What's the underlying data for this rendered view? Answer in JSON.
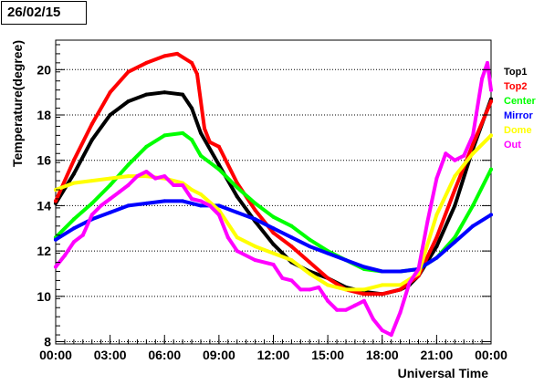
{
  "chart_data": {
    "type": "line",
    "title": "26/02/15",
    "xlabel": "Universal Time",
    "ylabel": "Temperature(degree)",
    "xlim": [
      0,
      24
    ],
    "ylim": [
      7.9,
      21.3
    ],
    "x_ticks": [
      0,
      3,
      6,
      9,
      12,
      15,
      18,
      21,
      24
    ],
    "x_tick_labels": [
      "00:00",
      "03:00",
      "06:00",
      "09:00",
      "12:00",
      "15:00",
      "18:00",
      "21:00",
      "00:00"
    ],
    "y_ticks": [
      8,
      10,
      12,
      14,
      16,
      18,
      20
    ],
    "y_tick_labels": [
      "8",
      "10",
      "12",
      "14",
      "16",
      "18",
      "20"
    ],
    "grid": "horizontal dotted",
    "legend_position": "right",
    "series": [
      {
        "name": "Top1",
        "color": "#000000",
        "points": [
          [
            0,
            14.1
          ],
          [
            1,
            15.4
          ],
          [
            2,
            16.9
          ],
          [
            3,
            18.0
          ],
          [
            4,
            18.6
          ],
          [
            5,
            18.9
          ],
          [
            6,
            19.0
          ],
          [
            7,
            18.9
          ],
          [
            7.5,
            18.3
          ],
          [
            8,
            17.2
          ],
          [
            9,
            15.8
          ],
          [
            10,
            14.4
          ],
          [
            11,
            13.3
          ],
          [
            12,
            12.3
          ],
          [
            13,
            11.5
          ],
          [
            14,
            11.1
          ],
          [
            15,
            10.8
          ],
          [
            16,
            10.4
          ],
          [
            17,
            10.2
          ],
          [
            18,
            10.1
          ],
          [
            19,
            10.3
          ],
          [
            19.5,
            10.5
          ],
          [
            20,
            10.9
          ],
          [
            21,
            12.2
          ],
          [
            22,
            14.0
          ],
          [
            23,
            16.5
          ],
          [
            24,
            18.7
          ]
        ]
      },
      {
        "name": "Top2",
        "color": "#ff0000",
        "points": [
          [
            0,
            14.2
          ],
          [
            1,
            16.0
          ],
          [
            2,
            17.6
          ],
          [
            3,
            19.0
          ],
          [
            4,
            19.9
          ],
          [
            5,
            20.3
          ],
          [
            6,
            20.6
          ],
          [
            6.7,
            20.7
          ],
          [
            7.5,
            20.3
          ],
          [
            7.8,
            19.8
          ],
          [
            8.2,
            17.4
          ],
          [
            8.5,
            16.8
          ],
          [
            9,
            16.6
          ],
          [
            10,
            15.0
          ],
          [
            11,
            13.8
          ],
          [
            12,
            12.8
          ],
          [
            13,
            12.2
          ],
          [
            14,
            11.5
          ],
          [
            15,
            10.8
          ],
          [
            16,
            10.3
          ],
          [
            17,
            10.1
          ],
          [
            18,
            10.1
          ],
          [
            19,
            10.3
          ],
          [
            20,
            10.9
          ],
          [
            21,
            12.6
          ],
          [
            22,
            14.7
          ],
          [
            23,
            16.7
          ],
          [
            24,
            18.6
          ]
        ]
      },
      {
        "name": "Center",
        "color": "#00ff00",
        "points": [
          [
            0,
            12.6
          ],
          [
            1,
            13.4
          ],
          [
            2,
            14.1
          ],
          [
            3,
            14.9
          ],
          [
            4,
            15.8
          ],
          [
            5,
            16.6
          ],
          [
            6,
            17.1
          ],
          [
            7,
            17.2
          ],
          [
            7.5,
            16.9
          ],
          [
            8,
            16.2
          ],
          [
            9,
            15.6
          ],
          [
            10,
            14.8
          ],
          [
            11,
            14.1
          ],
          [
            12,
            13.5
          ],
          [
            13,
            13.1
          ],
          [
            14,
            12.5
          ],
          [
            15,
            12.0
          ],
          [
            16,
            11.6
          ],
          [
            17,
            11.2
          ],
          [
            18,
            11.1
          ],
          [
            19,
            11.1
          ],
          [
            20,
            11.2
          ],
          [
            21,
            11.7
          ],
          [
            22,
            12.6
          ],
          [
            23,
            14.0
          ],
          [
            24,
            15.6
          ]
        ]
      },
      {
        "name": "Mirror",
        "color": "#0000ff",
        "points": [
          [
            0,
            12.5
          ],
          [
            1,
            13.0
          ],
          [
            2,
            13.4
          ],
          [
            3,
            13.7
          ],
          [
            4,
            14.0
          ],
          [
            5,
            14.1
          ],
          [
            6,
            14.2
          ],
          [
            7,
            14.2
          ],
          [
            8,
            14.0
          ],
          [
            9,
            14.0
          ],
          [
            10,
            13.7
          ],
          [
            11,
            13.4
          ],
          [
            12,
            13.0
          ],
          [
            13,
            12.6
          ],
          [
            14,
            12.2
          ],
          [
            15,
            11.9
          ],
          [
            16,
            11.6
          ],
          [
            17,
            11.3
          ],
          [
            18,
            11.1
          ],
          [
            19,
            11.1
          ],
          [
            20,
            11.2
          ],
          [
            21,
            11.7
          ],
          [
            22,
            12.4
          ],
          [
            23,
            13.1
          ],
          [
            24,
            13.6
          ]
        ]
      },
      {
        "name": "Dome",
        "color": "#ffff00",
        "points": [
          [
            0,
            14.7
          ],
          [
            1,
            15.0
          ],
          [
            2,
            15.1
          ],
          [
            3,
            15.2
          ],
          [
            4,
            15.3
          ],
          [
            5,
            15.3
          ],
          [
            6,
            15.2
          ],
          [
            7,
            15.0
          ],
          [
            7.5,
            14.7
          ],
          [
            8,
            14.5
          ],
          [
            9,
            13.8
          ],
          [
            10,
            12.6
          ],
          [
            11,
            12.2
          ],
          [
            12,
            11.9
          ],
          [
            13,
            11.6
          ],
          [
            14,
            11.0
          ],
          [
            15,
            10.5
          ],
          [
            16,
            10.3
          ],
          [
            17,
            10.3
          ],
          [
            18,
            10.5
          ],
          [
            19,
            10.5
          ],
          [
            20,
            11.0
          ],
          [
            21,
            13.6
          ],
          [
            22,
            15.3
          ],
          [
            23,
            16.3
          ],
          [
            24,
            17.1
          ]
        ]
      },
      {
        "name": "Out",
        "color": "#ff00ff",
        "points": [
          [
            0,
            11.3
          ],
          [
            0.5,
            11.8
          ],
          [
            1,
            12.4
          ],
          [
            1.5,
            12.7
          ],
          [
            2,
            13.6
          ],
          [
            2.5,
            14.0
          ],
          [
            3,
            14.3
          ],
          [
            3.5,
            14.6
          ],
          [
            4,
            14.9
          ],
          [
            4.5,
            15.3
          ],
          [
            5,
            15.5
          ],
          [
            5.5,
            15.2
          ],
          [
            6,
            15.3
          ],
          [
            6.5,
            14.9
          ],
          [
            7,
            14.9
          ],
          [
            7.5,
            14.3
          ],
          [
            8,
            14.2
          ],
          [
            8.5,
            14.0
          ],
          [
            9,
            13.6
          ],
          [
            9.5,
            12.6
          ],
          [
            10,
            12.0
          ],
          [
            11,
            11.6
          ],
          [
            12,
            11.4
          ],
          [
            12.5,
            10.8
          ],
          [
            13,
            10.7
          ],
          [
            13.5,
            10.3
          ],
          [
            14,
            10.3
          ],
          [
            14.5,
            10.4
          ],
          [
            15,
            9.8
          ],
          [
            15.5,
            9.4
          ],
          [
            16,
            9.4
          ],
          [
            16.5,
            9.6
          ],
          [
            17,
            9.8
          ],
          [
            17.5,
            9.0
          ],
          [
            18,
            8.5
          ],
          [
            18.5,
            8.3
          ],
          [
            19,
            9.3
          ],
          [
            19.5,
            10.6
          ],
          [
            20,
            11.2
          ],
          [
            20.5,
            13.3
          ],
          [
            21,
            15.2
          ],
          [
            21.5,
            16.3
          ],
          [
            22,
            16.0
          ],
          [
            22.5,
            16.2
          ],
          [
            23,
            17.1
          ],
          [
            23.5,
            19.6
          ],
          [
            23.8,
            20.3
          ],
          [
            24,
            19.1
          ]
        ]
      }
    ]
  }
}
